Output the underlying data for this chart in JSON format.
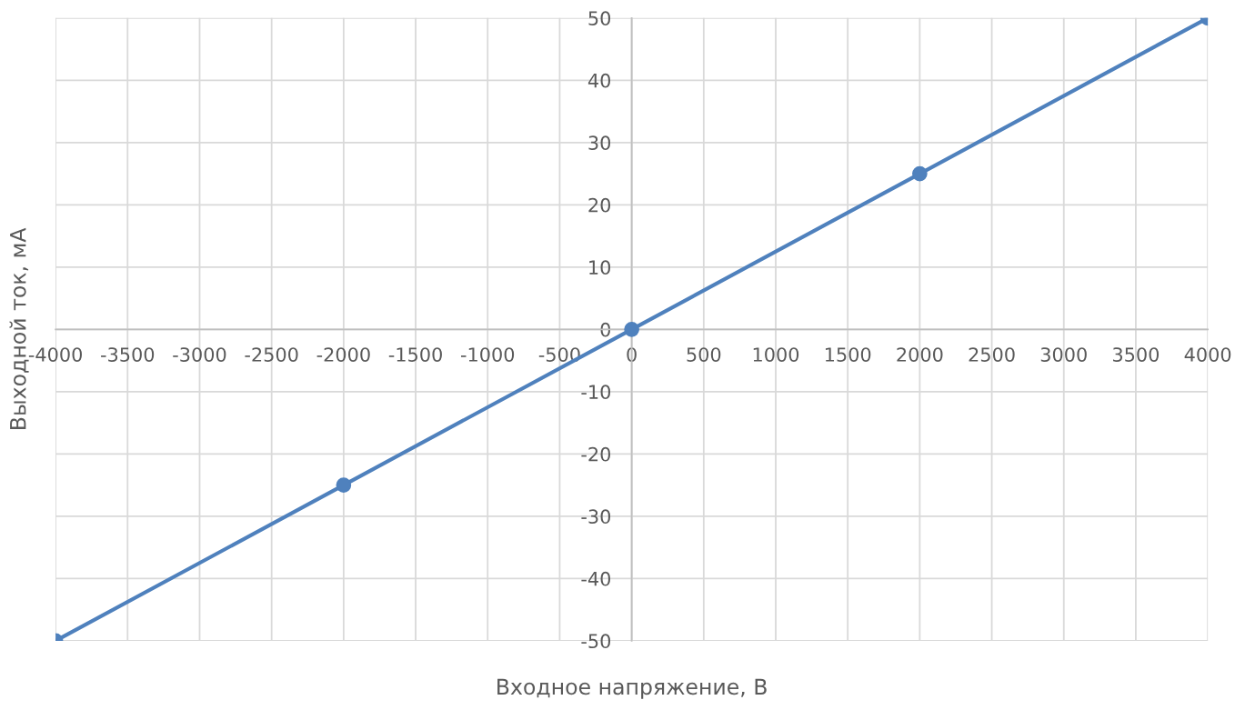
{
  "chart_data": {
    "type": "line",
    "xlabel": "Входное напряжение, В",
    "ylabel": "Выходной ток, мА",
    "x": [
      -4000,
      -2000,
      0,
      2000,
      4000
    ],
    "series": [
      {
        "color": "#4f81bd",
        "values": [
          -50,
          -25,
          0,
          25,
          50
        ]
      }
    ],
    "xlim": [
      -4000,
      4000
    ],
    "xticks": [
      -4000,
      -3500,
      -3000,
      -2500,
      -2000,
      -1500,
      -1000,
      -500,
      0,
      500,
      1000,
      1500,
      2000,
      2500,
      3000,
      3500,
      4000
    ],
    "ylim": [
      -50,
      50
    ],
    "yticks": [
      -50,
      -40,
      -30,
      -20,
      -10,
      0,
      10,
      20,
      30,
      40,
      50
    ],
    "grid": true,
    "marker": "circle",
    "line_style": "solid"
  }
}
